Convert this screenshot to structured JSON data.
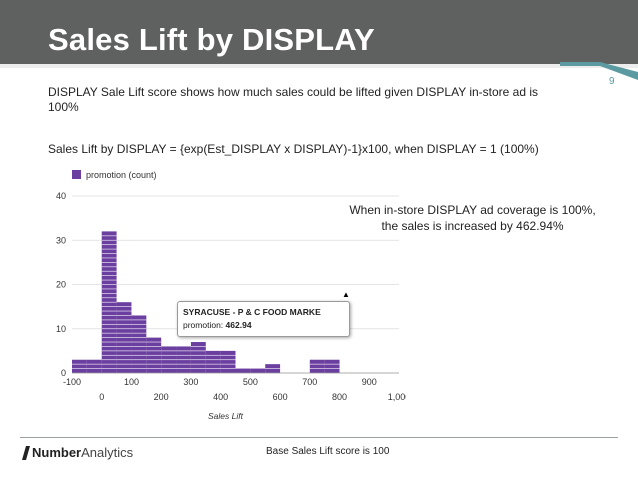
{
  "slide": {
    "title": "Sales Lift by DISPLAY",
    "page_number": "9",
    "description": "DISPLAY Sale Lift score shows how much sales could be lifted given DISPLAY in-store ad is 100%",
    "formula": "Sales Lift by DISPLAY = {exp(Est_DISPLAY x DISPLAY)-1}x100, when DISPLAY = 1 (100%)",
    "annotation": "When in-store DISPLAY ad coverage is 100%, the sales is increased by 462.94%",
    "footer_caption": "Base Sales Lift score is 100",
    "logo_strong": "Number",
    "logo_light": "Analytics"
  },
  "colors": {
    "header_bg": "#5f6160",
    "accent": "#5b9aa0",
    "bar_fill": "#6b3fa0",
    "bar_line": "#e8e0f2"
  },
  "tooltip": {
    "title": "SYRACUSE - P & C FOOD MARKE",
    "label": "promotion:",
    "value": "462.94"
  },
  "chart_data": {
    "type": "bar",
    "title": "",
    "legend": "promotion (count)",
    "legend_position": "top-left",
    "xlabel": "Sales Lift",
    "ylabel": "",
    "x_ticks_upper": [
      "-100",
      "100",
      "300",
      "500",
      "700",
      "900"
    ],
    "x_ticks_lower": [
      "0",
      "200",
      "400",
      "600",
      "800",
      "1,000"
    ],
    "x_range": [
      -100,
      1000
    ],
    "ylim": [
      0,
      40
    ],
    "y_ticks": [
      "0",
      "10",
      "20",
      "30",
      "40"
    ],
    "grid": true,
    "bin_width": 50,
    "bins": [
      {
        "start": -100,
        "count": 3
      },
      {
        "start": -50,
        "count": 3
      },
      {
        "start": 0,
        "count": 32
      },
      {
        "start": 50,
        "count": 16
      },
      {
        "start": 100,
        "count": 13
      },
      {
        "start": 150,
        "count": 8
      },
      {
        "start": 200,
        "count": 6
      },
      {
        "start": 250,
        "count": 6
      },
      {
        "start": 300,
        "count": 7
      },
      {
        "start": 350,
        "count": 5
      },
      {
        "start": 400,
        "count": 5
      },
      {
        "start": 450,
        "count": 1
      },
      {
        "start": 500,
        "count": 1
      },
      {
        "start": 550,
        "count": 2
      },
      {
        "start": 600,
        "count": 0
      },
      {
        "start": 650,
        "count": 0
      },
      {
        "start": 700,
        "count": 3
      },
      {
        "start": 750,
        "count": 3
      }
    ]
  }
}
